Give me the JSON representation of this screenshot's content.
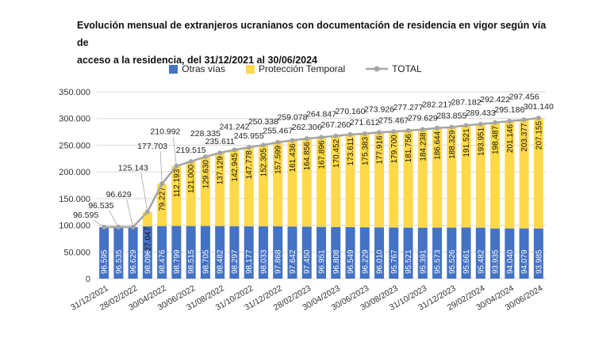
{
  "chart_data": {
    "type": "bar",
    "stacked": true,
    "title": "Evolución mensual de extranjeros ucranianos con documentación de residencia en vigor según vía de acceso a la residencia, del 31/12/2021 al 30/06/2024",
    "title_lines": [
      "Evolución mensual de extranjeros ucranianos con documentación de residencia en vigor según vía de",
      "acceso a la residencia, del 31/12/2021 al 30/06/2024"
    ],
    "legend_position": "top",
    "ylim": [
      0,
      350000
    ],
    "yticks": [
      "0",
      "50.000",
      "100.000",
      "150.000",
      "200.000",
      "250.000",
      "300.000",
      "350.000"
    ],
    "grid": true,
    "categories": [
      "31/12/2021",
      "",
      "28/02/2022",
      "",
      "30/04/2022",
      "",
      "30/06/2022",
      "",
      "31/08/2022",
      "",
      "31/10/2022",
      "",
      "31/12/2022",
      "",
      "28/02/2023",
      "",
      "30/04/2023",
      "",
      "30/06/2023",
      "",
      "30/08/2023",
      "",
      "31/10/2023",
      "",
      "31/12/2023",
      "",
      "29/02/2024",
      "",
      "30/04/2024",
      "",
      "30/06/2024"
    ],
    "series": [
      {
        "name": "Otras vías",
        "color": "#4472C4",
        "values": [
          96595,
          96535,
          96629,
          98096,
          98476,
          98799,
          98515,
          98705,
          98482,
          98297,
          98177,
          98033,
          97868,
          97642,
          97450,
          96951,
          96808,
          96549,
          96229,
          96010,
          95767,
          95521,
          95391,
          95573,
          95526,
          95661,
          95482,
          93935,
          94040,
          94079,
          93985
        ],
        "labels": [
          "96.595",
          "96.535",
          "96.629",
          "98.096",
          "98.476",
          "98.799",
          "98.515",
          "98.705",
          "98.482",
          "98.297",
          "98.177",
          "98.033",
          "97.868",
          "97.642",
          "97.450",
          "96.951",
          "96.808",
          "96.549",
          "96.229",
          "96.010",
          "95.767",
          "95.521",
          "95.391",
          "95.573",
          "95.526",
          "95.661",
          "95.482",
          "93.935",
          "94.040",
          "94.079",
          "93.985"
        ]
      },
      {
        "name": "Protección Temporal",
        "color": "#FFD94A",
        "values": [
          0,
          0,
          0,
          27047,
          79227,
          112193,
          121000,
          129630,
          137129,
          142945,
          147778,
          152305,
          157599,
          161436,
          164856,
          167896,
          170452,
          173611,
          175383,
          177916,
          179700,
          181756,
          184238,
          186644,
          188329,
          191521,
          193951,
          198487,
          201146,
          203377,
          207155
        ],
        "labels": [
          "",
          "",
          "",
          "27.047",
          "79.227",
          "112.193",
          "121.000",
          "129.630",
          "137.129",
          "142.945",
          "147.778",
          "152.305",
          "157.599",
          "161.436",
          "164.856",
          "167.896",
          "170.452",
          "173.611",
          "175.383",
          "177.916",
          "179.700",
          "181.756",
          "184.238",
          "186.644",
          "188.329",
          "191.521",
          "193.951",
          "198.487",
          "201.146",
          "203.377",
          "207.155"
        ]
      },
      {
        "name": "TOTAL",
        "type": "line",
        "color": "#A5A5A5",
        "values": [
          96595,
          96535,
          96629,
          125143,
          177703,
          210992,
          219515,
          228335,
          235611,
          241242,
          245955,
          250338,
          255467,
          259078,
          262306,
          264847,
          267260,
          270160,
          271612,
          273926,
          275467,
          277277,
          279629,
          282217,
          283855,
          287182,
          289433,
          292422,
          295186,
          297456,
          301140
        ],
        "labels": [
          "96.595",
          "96.535",
          "96.629",
          "125.143",
          "177.703",
          "210.992",
          "219.515",
          "228.335",
          "235.611",
          "241.242",
          "245.955",
          "250.338",
          "255.467",
          "259.078",
          "262.306",
          "264.847",
          "267.260",
          "270.160",
          "271.612",
          "273.926",
          "275.467",
          "277.277",
          "279.629",
          "282.217",
          "283.855",
          "287.182",
          "289.433",
          "292.422",
          "295.186",
          "297.456",
          "301.140"
        ]
      }
    ]
  }
}
